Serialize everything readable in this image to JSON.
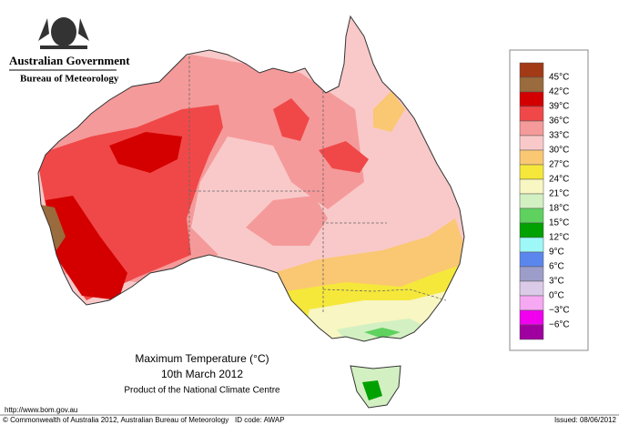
{
  "header": {
    "agency": "Australian Government",
    "bureau": "Bureau of Meteorology"
  },
  "map": {
    "title": "Maximum Temperature (°C)",
    "date": "10th March 2012",
    "product": "Product of the National Climate Centre"
  },
  "legend": {
    "colors": [
      "#a33a16",
      "#9a6b3c",
      "#d40000",
      "#f04848",
      "#f59a9a",
      "#f9c9c9",
      "#fac773",
      "#f5e83a",
      "#f8f6c2",
      "#d3f0c3",
      "#5fd15f",
      "#00a100",
      "#9ef8f8",
      "#5b86ee",
      "#9d9dc9",
      "#dccbe8",
      "#f6a8f3",
      "#f000ef",
      "#a0009f"
    ],
    "labels": [
      "45°C",
      "42°C",
      "39°C",
      "36°C",
      "33°C",
      "30°C",
      "27°C",
      "24°C",
      "21°C",
      "18°C",
      "15°C",
      "12°C",
      "9°C",
      "6°C",
      "3°C",
      "0°C",
      "−3°C",
      "−6°C"
    ]
  },
  "footer": {
    "url": "http://www.bom.gov.au",
    "copyright": "© Commonwealth of Australia 2012, Australian Bureau of Meteorology",
    "id": "ID code: AWAP",
    "issued": "Issued: 08/06/2012"
  }
}
